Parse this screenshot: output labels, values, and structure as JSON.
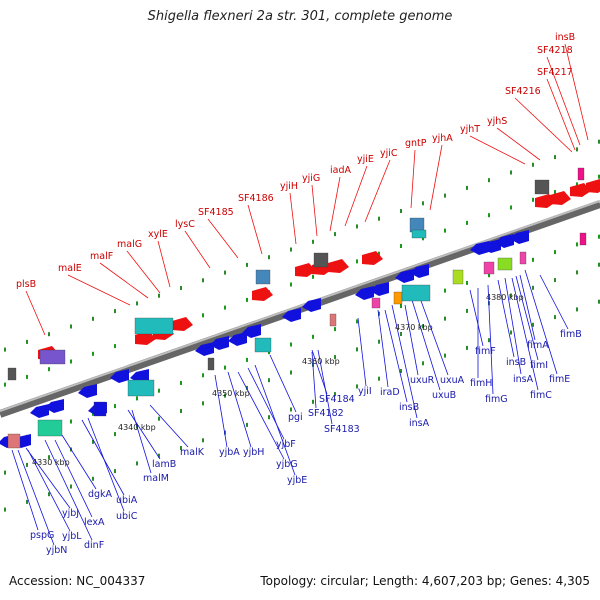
{
  "title": "Shigella flexneri 2a str. 301, complete genome",
  "accession_label": "Accession: NC_004337",
  "summary_label": "Topology: circular; Length: 4,607,203 bp; Genes: 4,305",
  "colors": {
    "forward_gene": "#ee1111",
    "reverse_gene": "#1111dd",
    "forward_label": "#cc0000",
    "reverse_label": "#1a1aaa",
    "backbone": "#888888"
  },
  "ticks": [
    "4330 kbp",
    "4340 kbp",
    "4350 kbp",
    "4360 kbp",
    "4370 kbp",
    "4380 kbp"
  ],
  "top_labels": [
    "plsB",
    "malE",
    "malF",
    "malG",
    "xylE",
    "lysC",
    "SF4185",
    "SF4186",
    "yjiH",
    "yjiG",
    "iadA",
    "yjiE",
    "yjiC",
    "gntP",
    "yjhA",
    "yjhT",
    "yjhS",
    "SF4216",
    "SF4217",
    "SF4218",
    "insB"
  ],
  "bottom_labels": [
    "pspG",
    "yjbN",
    "yjbJ",
    "yjbL",
    "dinF",
    "lexA",
    "dgkA",
    "ubiA",
    "ubiC",
    "lamB",
    "malM",
    "malK",
    "yjbA",
    "yjbH",
    "yjbG",
    "yjbF",
    "yjbE",
    "pgi",
    "SF4184",
    "SF4182",
    "SF4183",
    "yjiI",
    "iraD",
    "insB",
    "insA",
    "uxuR",
    "uxuB",
    "uxuA",
    "fimF",
    "fimH",
    "fimG",
    "insB",
    "insA",
    "fimC",
    "fimI",
    "fimA",
    "fimE",
    "fimB"
  ]
}
